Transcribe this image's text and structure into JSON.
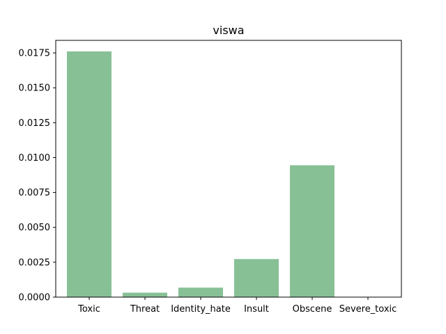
{
  "chart_data": {
    "type": "bar",
    "title": "viswa",
    "xlabel": "",
    "ylabel": "",
    "categories": [
      "Toxic",
      "Threat",
      "Identity_hate",
      "Insult",
      "Obscene",
      "Severe_toxic"
    ],
    "values": [
      0.01761,
      0.00032,
      0.00068,
      0.00273,
      0.00945,
      0.0
    ],
    "ylim": [
      0,
      0.0184
    ],
    "yticks": [
      0.0,
      0.0025,
      0.005,
      0.0075,
      0.01,
      0.0125,
      0.015,
      0.0175
    ],
    "ytick_labels": [
      "0.0000",
      "0.0025",
      "0.0050",
      "0.0075",
      "0.0100",
      "0.0125",
      "0.0150",
      "0.0175"
    ],
    "bar_color": "#88c096",
    "grid": false,
    "legend": "none"
  }
}
